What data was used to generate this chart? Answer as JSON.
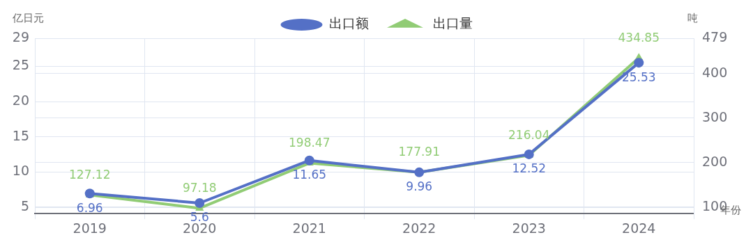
{
  "chart_data": {
    "type": "line",
    "categories": [
      "2019",
      "2020",
      "2021",
      "2022",
      "2023",
      "2024"
    ],
    "series": [
      {
        "name": "出口额",
        "color": "#5470c6",
        "values": [
          6.96,
          5.6,
          11.65,
          9.96,
          12.52,
          25.53
        ],
        "marker": "circle"
      },
      {
        "name": "出口量",
        "color": "#91cc75",
        "values": [
          127.12,
          97.18,
          198.47,
          177.91,
          216.04,
          434.85
        ],
        "axis": "y2",
        "marker": "triangle"
      }
    ],
    "ylabel": "亿日元",
    "y2label": "吨",
    "xlabel": "年份",
    "ylim": [
      4.1,
      29
    ],
    "yticks": [
      5,
      10,
      15,
      20,
      25,
      29
    ],
    "y2lim": [
      85,
      479
    ],
    "y2ticks": [
      100,
      200,
      300,
      400,
      479
    ],
    "grid": true,
    "legend": "top",
    "data_labels": true
  }
}
